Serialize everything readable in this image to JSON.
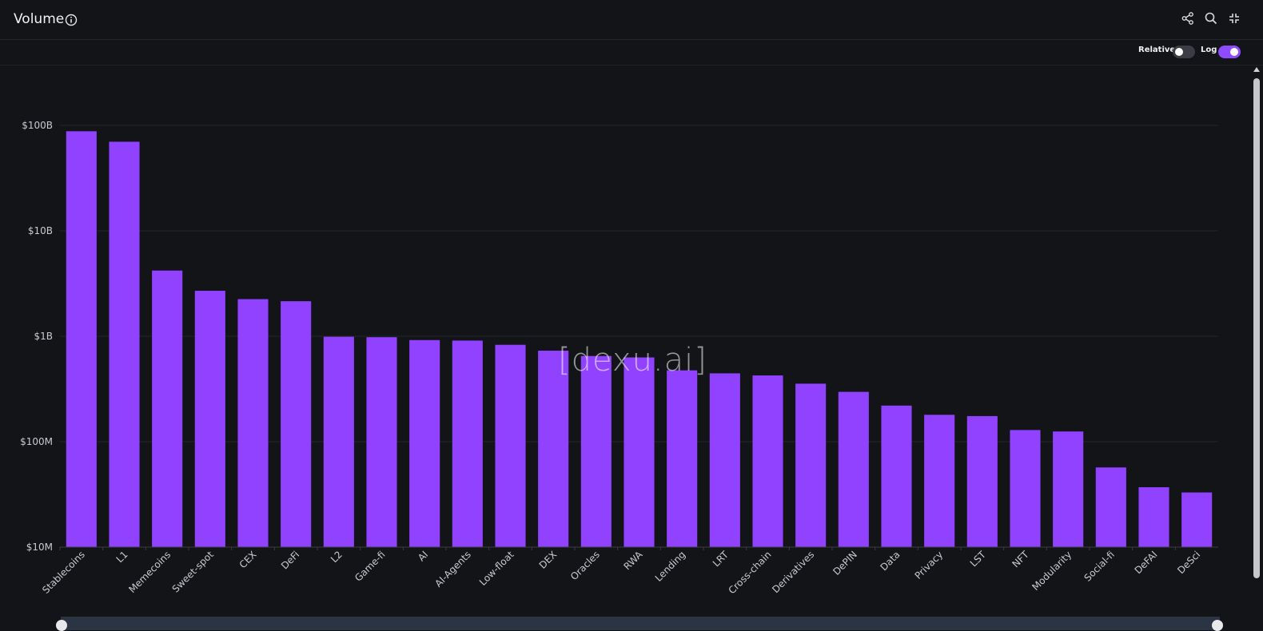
{
  "header": {
    "title": "Volume",
    "icons": [
      "info-icon",
      "share-icon",
      "search-icon",
      "collapse-icon"
    ]
  },
  "toolbar": {
    "relative_label": "Relative",
    "relative_on": false,
    "log_label": "Log",
    "log_on": true
  },
  "watermark": "[dexu.ai]",
  "colors": {
    "bar": "#9042ff",
    "background": "#131418",
    "toggle_on": "#8f4bff",
    "toggle_off": "#3b3d44"
  },
  "chart_data": {
    "type": "bar",
    "scale": "log",
    "ylim": [
      10000000,
      100000000000
    ],
    "yticks": [
      10000000,
      100000000,
      1000000000,
      10000000000,
      100000000000
    ],
    "ytick_labels": [
      "$10M",
      "$100M",
      "$1B",
      "$10B",
      "$100B"
    ],
    "grid": true,
    "categories": [
      "Stablecoins",
      "L1",
      "Memecoins",
      "Sweet-spot",
      "CEX",
      "DeFi",
      "L2",
      "Game-fi",
      "AI",
      "AI-Agents",
      "Low-float",
      "DEX",
      "Oracles",
      "RWA",
      "Lending",
      "LRT",
      "Cross-chain",
      "Derivatives",
      "DePIN",
      "Data",
      "Privacy",
      "LST",
      "NFT",
      "Modularity",
      "Social-fi",
      "DeFAI",
      "DeSci"
    ],
    "values": [
      88000000000,
      70000000000,
      4200000000,
      2700000000,
      2250000000,
      2150000000,
      990000000,
      980000000,
      920000000,
      910000000,
      830000000,
      730000000,
      650000000,
      630000000,
      475000000,
      445000000,
      425000000,
      355000000,
      297000000,
      220000000,
      180000000,
      175000000,
      129000000,
      125000000,
      57000000,
      37000000,
      33000000
    ]
  }
}
